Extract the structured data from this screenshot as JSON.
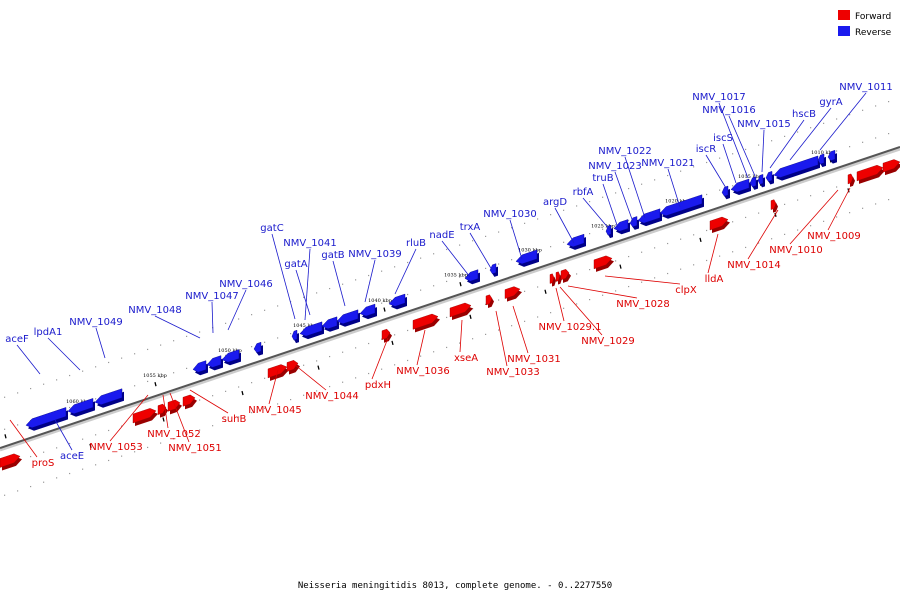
{
  "legend": {
    "items": [
      {
        "label": "Forward",
        "color": "#ee0000"
      },
      {
        "label": "Reverse",
        "color": "#1a1aee"
      }
    ]
  },
  "caption": "Neisseria meningitidis 8013, complete genome. - 0..2277550",
  "scale_ticks": [
    "1010 kbp",
    "1015 kbp",
    "1020 kbp",
    "1025 kbp",
    "1030 kbp",
    "1035 kbp",
    "1040 kbp",
    "1045 kbp",
    "1050 kbp",
    "1055 kbp",
    "1060 kbp"
  ],
  "forward_genes": [
    "proS",
    "NMV_1053",
    "NMV_1052",
    "NMV_1051",
    "suhB",
    "NMV_1045",
    "NMV_1044",
    "pdxH",
    "NMV_1036",
    "xseA",
    "NMV_1033",
    "NMV_1031",
    "NMV_1029.1",
    "NMV_1029",
    "NMV_1028",
    "clpX",
    "lldA",
    "NMV_1014",
    "NMV_1010",
    "NMV_1009"
  ],
  "reverse_genes": [
    "aceE",
    "aceF",
    "lpdA1",
    "NMV_1049",
    "NMV_1048",
    "NMV_1047",
    "NMV_1046",
    "gatC",
    "NMV_1041",
    "gatA",
    "gatB",
    "NMV_1039",
    "rluB",
    "nadE",
    "trxA",
    "NMV_1030",
    "argD",
    "rbfA",
    "truB",
    "NMV_1023",
    "NMV_1022",
    "NMV_1021",
    "iscR",
    "iscS",
    "NMV_1017",
    "NMV_1016",
    "NMV_1015",
    "hscB",
    "gyrA",
    "NMV_1011"
  ]
}
